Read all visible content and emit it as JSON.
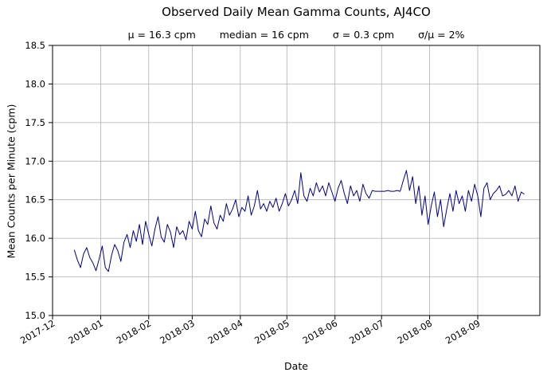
{
  "chart_data": {
    "type": "line",
    "title": "Observed Daily Mean Gamma Counts, AJ4CO",
    "stats": {
      "mu": "μ = 16.3 cpm",
      "median": "median = 16 cpm",
      "sigma": "σ = 0.3 cpm",
      "sigma_over_mu": "σ/μ = 2%"
    },
    "xlabel": "Date",
    "ylabel": "Mean Counts per Minute (cpm)",
    "ylim": [
      15.0,
      18.5
    ],
    "ytick_step": 0.5,
    "x_tick_labels": [
      "2017-12",
      "2018-01",
      "2018-02",
      "2018-03",
      "2018-04",
      "2018-05",
      "2018-06",
      "2018-07",
      "2018-08",
      "2018-09"
    ],
    "x_tick_days": [
      0,
      31,
      62,
      90,
      121,
      151,
      182,
      212,
      243,
      274
    ],
    "x_axis_span_days": 314,
    "series_start_day": 14,
    "series_step_days": 2,
    "line_color": "#00008b",
    "grid_color": "#b0b0b0",
    "grid": true,
    "legend": "none",
    "values": [
      15.85,
      15.72,
      15.62,
      15.8,
      15.88,
      15.75,
      15.68,
      15.58,
      15.73,
      15.9,
      15.62,
      15.57,
      15.78,
      15.92,
      15.84,
      15.7,
      15.95,
      16.05,
      15.88,
      16.1,
      15.96,
      16.18,
      15.92,
      16.22,
      16.05,
      15.9,
      16.12,
      16.28,
      16.02,
      15.95,
      16.18,
      16.08,
      15.88,
      16.15,
      16.05,
      16.1,
      15.98,
      16.22,
      16.12,
      16.35,
      16.1,
      16.02,
      16.25,
      16.18,
      16.42,
      16.2,
      16.12,
      16.3,
      16.22,
      16.45,
      16.3,
      16.38,
      16.5,
      16.28,
      16.4,
      16.35,
      16.55,
      16.3,
      16.42,
      16.62,
      16.38,
      16.45,
      16.35,
      16.48,
      16.4,
      16.52,
      16.35,
      16.45,
      16.58,
      16.42,
      16.5,
      16.62,
      16.45,
      16.85,
      16.55,
      16.48,
      16.65,
      16.55,
      16.72,
      16.6,
      16.68,
      16.55,
      16.72,
      16.6,
      16.48,
      16.65,
      16.75,
      16.58,
      16.45,
      16.68,
      16.55,
      16.62,
      16.48,
      16.7,
      16.58,
      16.52,
      16.62,
      16.61,
      16.61,
      16.61,
      16.61,
      16.62,
      16.61,
      16.61,
      16.62,
      16.61,
      16.75,
      16.88,
      16.62,
      16.8,
      16.45,
      16.68,
      16.3,
      16.55,
      16.18,
      16.42,
      16.6,
      16.28,
      16.5,
      16.15,
      16.38,
      16.58,
      16.35,
      16.62,
      16.45,
      16.55,
      16.35,
      16.62,
      16.48,
      16.7,
      16.55,
      16.28,
      16.65,
      16.72,
      16.5,
      16.58,
      16.62,
      16.68,
      16.55,
      16.57,
      16.62,
      16.55,
      16.68,
      16.48,
      16.6,
      16.57
    ]
  }
}
